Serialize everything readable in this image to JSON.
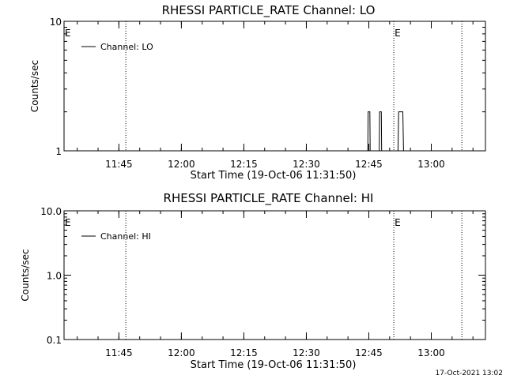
{
  "chart_data": [
    {
      "type": "line",
      "title": "RHESSI PARTICLE_RATE Channel: LO",
      "xlabel": "Start Time (19-Oct-06 11:31:50)",
      "ylabel": "Counts/sec",
      "yscale": "log",
      "ylim": [
        1,
        10
      ],
      "y_ticks": [
        {
          "v": 1,
          "label": "1"
        },
        {
          "v": 10,
          "label": "10"
        }
      ],
      "xlim": [
        "11:31:50",
        "13:13:00"
      ],
      "x_ticks": [
        "11:45",
        "12:00",
        "12:15",
        "12:30",
        "12:45",
        "13:00"
      ],
      "legend": "top-left",
      "series": [
        {
          "name": "Channel: LO",
          "points": [
            [
              "12:44:45",
              1
            ],
            [
              "12:44:50",
              2
            ],
            [
              "12:45:15",
              2
            ],
            [
              "12:45:20",
              1
            ],
            [
              "12:47:30",
              1
            ],
            [
              "12:47:35",
              2
            ],
            [
              "12:48:00",
              2
            ],
            [
              "12:48:05",
              1
            ],
            [
              "12:52:00",
              1
            ],
            [
              "12:52:10",
              2
            ],
            [
              "12:53:10",
              2
            ],
            [
              "12:53:20",
              1
            ]
          ]
        }
      ],
      "event_lines": [
        {
          "time": "11:46:40",
          "label": ""
        },
        {
          "time": "12:51:00",
          "label": "E"
        },
        {
          "time": "13:07:20",
          "label": ""
        }
      ],
      "corner_label": "E"
    },
    {
      "type": "line",
      "title": "RHESSI PARTICLE_RATE Channel: HI",
      "xlabel": "Start Time (19-Oct-06 11:31:50)",
      "ylabel": "Counts/sec",
      "yscale": "log",
      "ylim": [
        0.1,
        10
      ],
      "y_ticks": [
        {
          "v": 0.1,
          "label": "0.1"
        },
        {
          "v": 1,
          "label": "1.0"
        },
        {
          "v": 10,
          "label": "10.0"
        }
      ],
      "xlim": [
        "11:31:50",
        "13:13:00"
      ],
      "x_ticks": [
        "11:45",
        "12:00",
        "12:15",
        "12:30",
        "12:45",
        "13:00"
      ],
      "legend": "top-left",
      "series": [
        {
          "name": "Channel: HI",
          "points": []
        }
      ],
      "event_lines": [
        {
          "time": "11:46:40",
          "label": ""
        },
        {
          "time": "12:51:00",
          "label": "E"
        },
        {
          "time": "13:07:20",
          "label": ""
        }
      ],
      "corner_label": "E"
    }
  ],
  "footer": {
    "timestamp": "17-Oct-2021 13:02"
  }
}
